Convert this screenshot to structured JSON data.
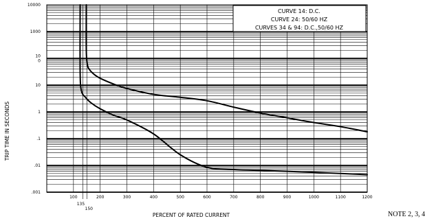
{
  "chart_data": {
    "type": "line",
    "title": "",
    "xlabel": "PERCENT OF RATED CURRENT",
    "ylabel": "TRIP TIME IN SECONDS",
    "x_scale": "linear",
    "y_scale": "log",
    "xlim": [
      0,
      1200
    ],
    "ylim": [
      0.001,
      10000
    ],
    "x_ticks": [
      "100",
      "200",
      "300",
      "400",
      "500",
      "600",
      "700",
      "800",
      "900",
      "1000",
      "1100",
      "1200"
    ],
    "x_ticks_extra": [
      "135",
      "150"
    ],
    "y_ticks": [
      {
        "value": 10000,
        "label": "10000"
      },
      {
        "value": 1000,
        "label": "1000"
      },
      {
        "value": 100,
        "label": "10\n0"
      },
      {
        "value": 10,
        "label": "10"
      },
      {
        "value": 1,
        "label": "1"
      },
      {
        "value": 0.1,
        "label": ".1"
      },
      {
        "value": 0.01,
        "label": ".01"
      },
      {
        "value": 0.001,
        "label": ".001"
      }
    ],
    "legend": {
      "placement": "top-right",
      "lines": [
        "CURVE 14: D.C.",
        "CURVE 24: 50/60 HZ",
        "CURVES 34 & 94: D.C.,50/60 HZ"
      ]
    },
    "series": [
      {
        "x": [
          125,
          125,
          130,
          145,
          165,
          200,
          250,
          300,
          400,
          500,
          600,
          700,
          800,
          900,
          1000,
          1100,
          1200
        ],
        "y": [
          10000,
          30,
          6,
          3.5,
          2.2,
          1.3,
          0.75,
          0.5,
          0.15,
          0.025,
          0.0085,
          0.007,
          0.0065,
          0.006,
          0.0055,
          0.005,
          0.0045
        ]
      },
      {
        "x": [
          148,
          148,
          152,
          160,
          180,
          200,
          250,
          300,
          400,
          500,
          600,
          700,
          800,
          900,
          1000,
          1100,
          1200
        ],
        "y": [
          10000,
          200,
          60,
          38,
          24,
          18,
          11,
          7.5,
          4.5,
          3.5,
          2.6,
          1.5,
          0.9,
          0.6,
          0.4,
          0.28,
          0.18
        ]
      }
    ]
  },
  "note": "NOTE 2, 3, 4"
}
